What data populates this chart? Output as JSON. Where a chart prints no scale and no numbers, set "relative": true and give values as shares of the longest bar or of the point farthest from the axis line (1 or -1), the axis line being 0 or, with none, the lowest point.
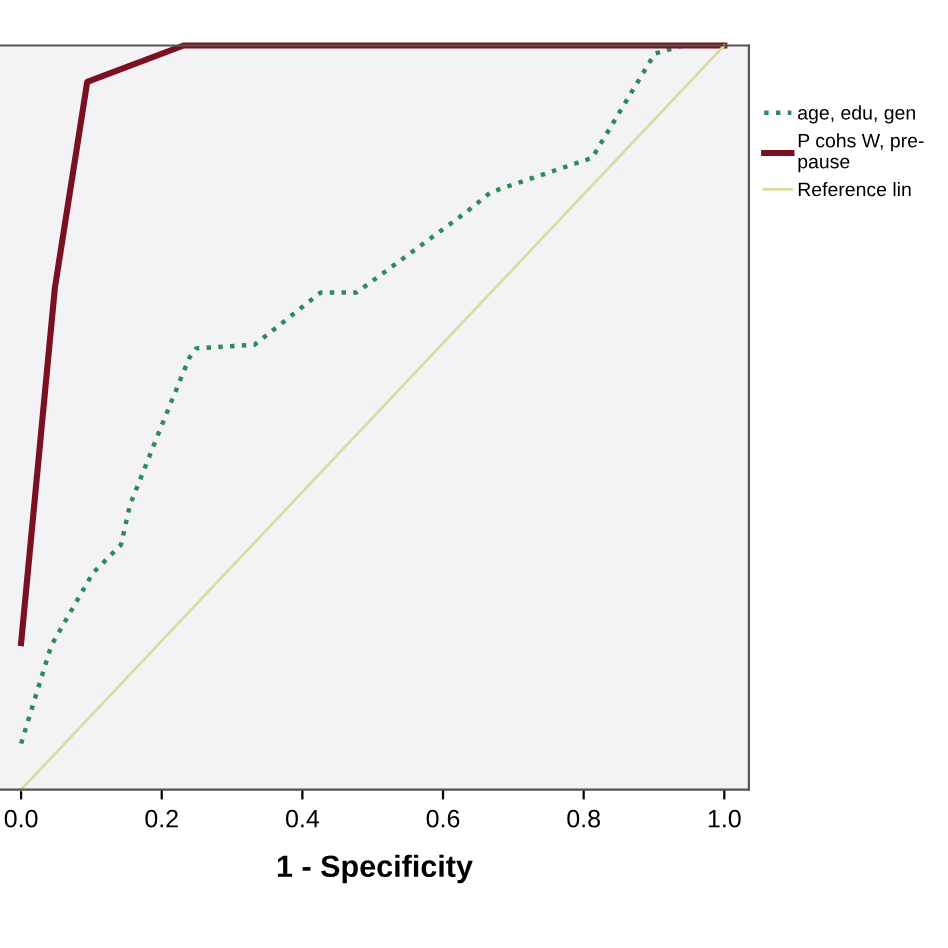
{
  "chart_data": {
    "type": "line",
    "relative": true,
    "xlabel": "1 - Specificity",
    "xlim": [
      -0.03,
      1.035
    ],
    "xticks": [
      {
        "value": 0,
        "label": "0.0"
      },
      {
        "value": 0.2,
        "label": "0.2"
      },
      {
        "value": 0.4,
        "label": "0.4"
      },
      {
        "value": 0.6,
        "label": "0.6"
      },
      {
        "value": 0.8,
        "label": "0.8"
      },
      {
        "value": 1,
        "label": "1.0"
      }
    ],
    "tick_labels": "x",
    "grid": false,
    "legend": "right",
    "marker": "none",
    "series": [
      {
        "name": "age, edu, gen",
        "color": "#2e8b57",
        "line_style": "dotted",
        "x": [
          0,
          0.043,
          0.102,
          0.142,
          0.155,
          0.204,
          0.239,
          0.249,
          0.332,
          0.426,
          0.477,
          0.633,
          0.668,
          0.812,
          0.901,
          0.941,
          1.0
        ],
        "values": [
          0.062,
          0.194,
          0.291,
          0.329,
          0.383,
          0.499,
          0.58,
          0.593,
          0.598,
          0.668,
          0.668,
          0.776,
          0.803,
          0.849,
          0.989,
          1.0,
          1.0
        ]
      },
      {
        "name": "P cohs W, pre-\npause",
        "color": "#7b1020",
        "line_style": "solid",
        "x": [
          0,
          0.048,
          0.094,
          0.231,
          1.0
        ],
        "values": [
          0.197,
          0.674,
          0.951,
          1.0,
          1.0
        ]
      },
      {
        "name": "Reference lin",
        "color": "#dcdca0",
        "line_style": "solid",
        "x": [
          0,
          1
        ],
        "values": [
          0,
          1
        ]
      }
    ]
  }
}
